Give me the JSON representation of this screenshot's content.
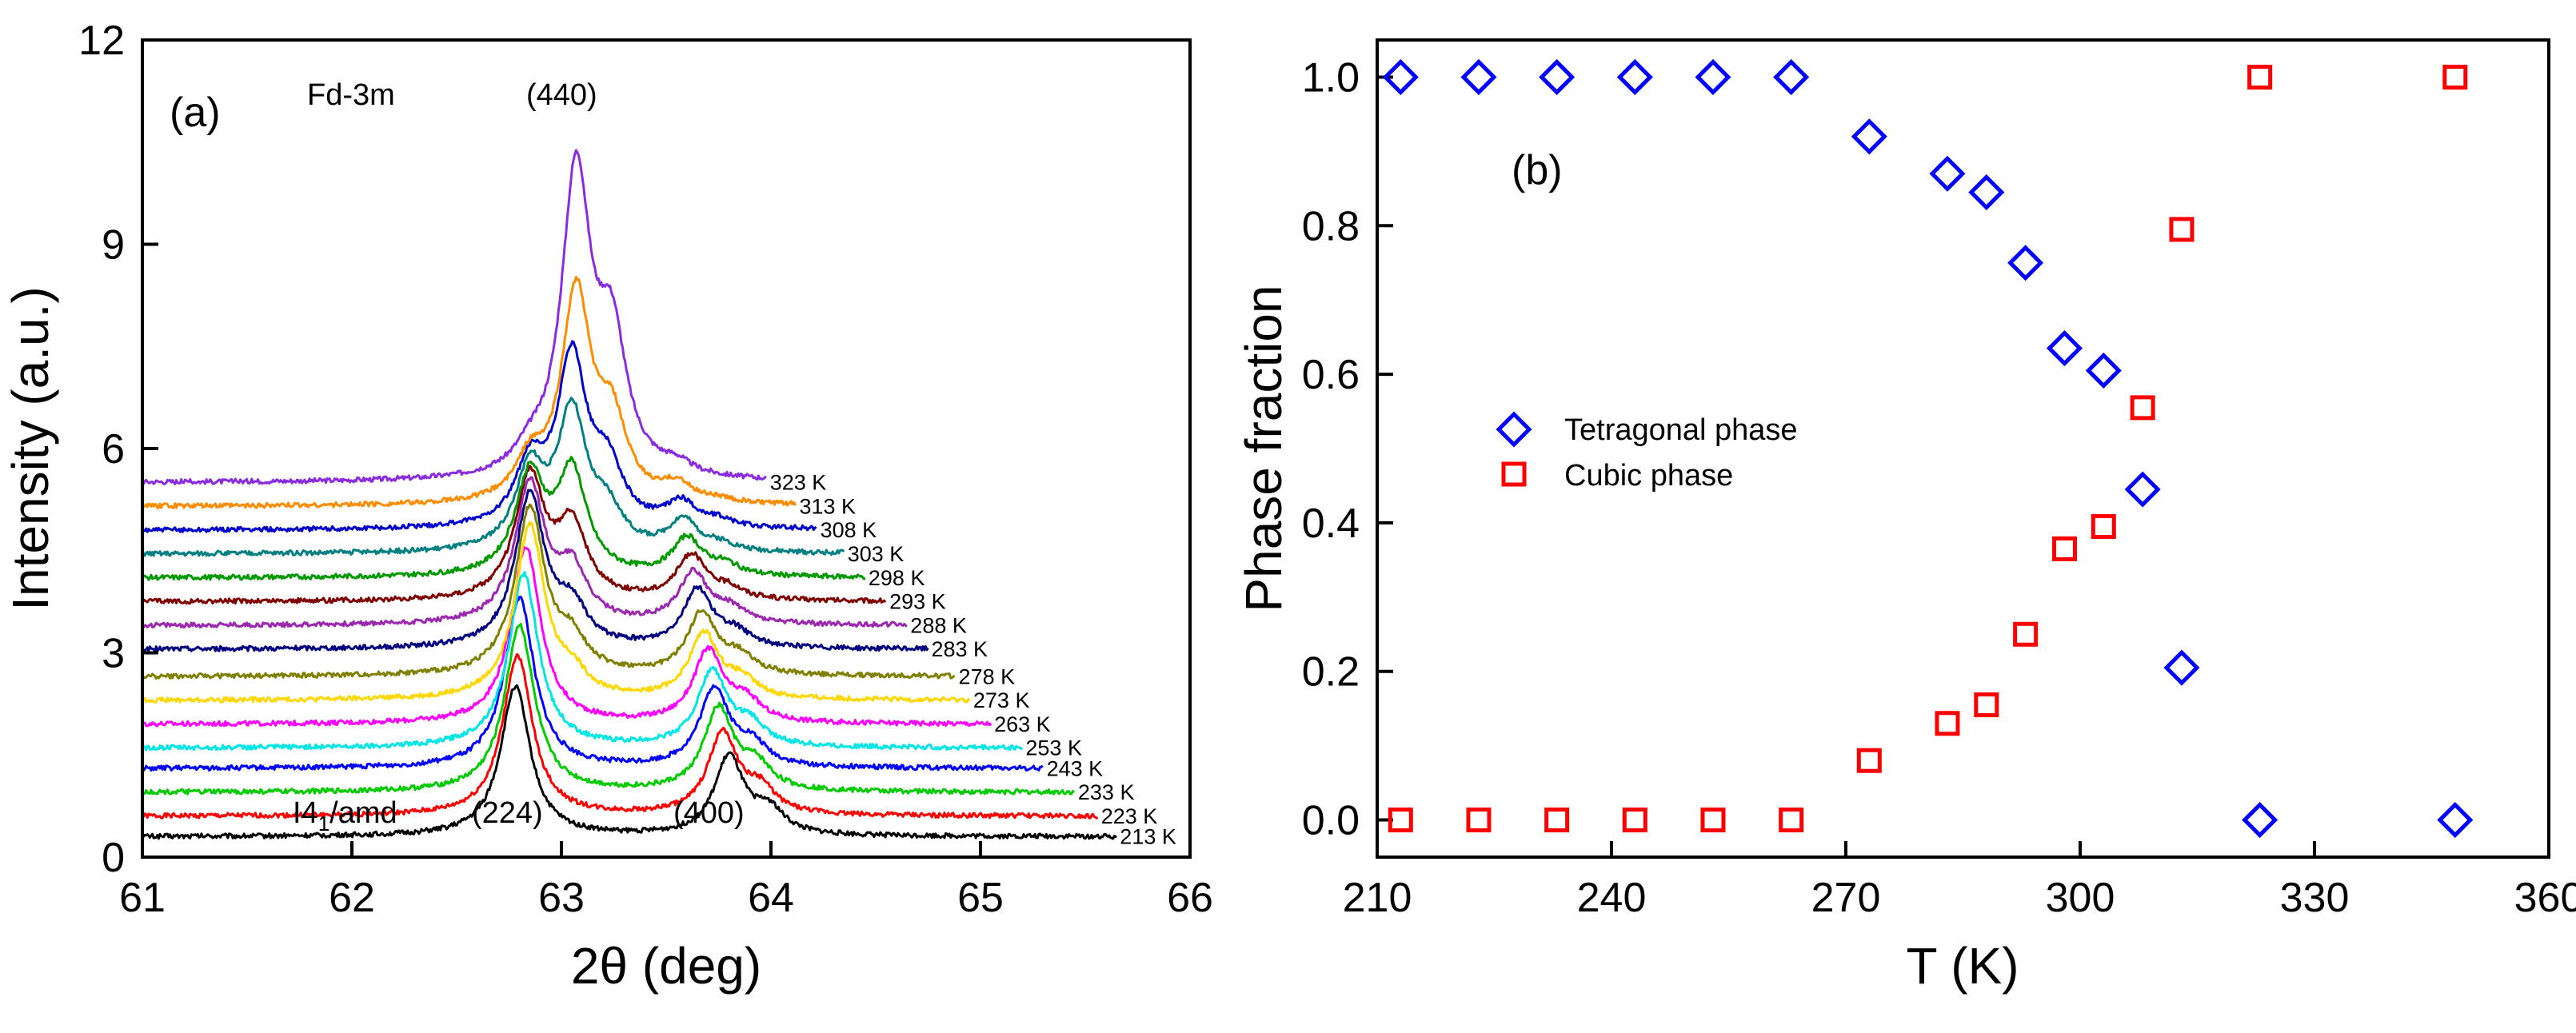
{
  "chart_data": [
    {
      "type": "line",
      "panel_label": "(a)",
      "xlabel": "2θ (deg)",
      "ylabel": "Intensity (a.u.)",
      "xlim": [
        61,
        66
      ],
      "ylim": [
        0,
        12
      ],
      "x_ticks": [
        61,
        62,
        63,
        64,
        65,
        66
      ],
      "y_ticks": [
        0,
        3,
        6,
        9,
        12
      ],
      "annotations": {
        "cubic_space_group": "Fd-3m",
        "cubic_peak": "(440)",
        "tetragonal_space_group_main": "I4",
        "tetragonal_space_group_sub": "1",
        "tetragonal_space_group_tail": "/amd",
        "tetragonal_peak_1": "(224)",
        "tetragonal_peak_2": "(400)"
      },
      "series": [
        {
          "name": "213 K",
          "temperature": 213,
          "color": "#000000",
          "baseline": 0.3,
          "x_end": 65.65,
          "peaks": [
            [
              62.78,
              2.2
            ],
            [
              63.8,
              1.15
            ],
            [
              63.99,
              0.35
            ]
          ]
        },
        {
          "name": "223 K",
          "temperature": 223,
          "color": "#ff0000",
          "baseline": 0.6,
          "x_end": 65.56,
          "peaks": [
            [
              62.79,
              2.35
            ],
            [
              63.77,
              1.2
            ],
            [
              63.95,
              0.35
            ]
          ]
        },
        {
          "name": "233 K",
          "temperature": 233,
          "color": "#00cc00",
          "baseline": 0.95,
          "x_end": 65.45,
          "peaks": [
            [
              62.8,
              2.45
            ],
            [
              63.75,
              1.2
            ],
            [
              63.93,
              0.35
            ]
          ]
        },
        {
          "name": "243 K",
          "temperature": 243,
          "color": "#0000ff",
          "baseline": 1.3,
          "x_end": 65.3,
          "peaks": [
            [
              62.8,
              2.5
            ],
            [
              63.73,
              1.15
            ],
            [
              63.91,
              0.3
            ]
          ]
        },
        {
          "name": "253 K",
          "temperature": 253,
          "color": "#00e5e5",
          "baseline": 1.6,
          "x_end": 65.2,
          "peaks": [
            [
              62.82,
              2.55
            ],
            [
              63.72,
              1.1
            ],
            [
              63.9,
              0.3
            ]
          ]
        },
        {
          "name": "263 K",
          "temperature": 263,
          "color": "#ff00ff",
          "baseline": 1.95,
          "x_end": 65.05,
          "peaks": [
            [
              62.83,
              2.6
            ],
            [
              63.7,
              1.05
            ],
            [
              63.88,
              0.3
            ]
          ]
        },
        {
          "name": "273 K",
          "temperature": 273,
          "color": "#ffd700",
          "baseline": 2.3,
          "x_end": 64.95,
          "peaks": [
            [
              62.85,
              2.55
            ],
            [
              63.68,
              0.95
            ],
            [
              63.86,
              0.25
            ],
            [
              63.05,
              0.3
            ]
          ]
        },
        {
          "name": "278 K",
          "temperature": 278,
          "color": "#808000",
          "baseline": 2.65,
          "x_end": 64.88,
          "peaks": [
            [
              62.85,
              2.45
            ],
            [
              63.67,
              0.9
            ],
            [
              63.85,
              0.25
            ],
            [
              63.05,
              0.45
            ]
          ]
        },
        {
          "name": "283 K",
          "temperature": 283,
          "color": "#000080",
          "baseline": 3.05,
          "x_end": 64.75,
          "peaks": [
            [
              62.85,
              2.25
            ],
            [
              63.65,
              0.85
            ],
            [
              63.83,
              0.2
            ],
            [
              63.05,
              0.55
            ]
          ]
        },
        {
          "name": "288 K",
          "temperature": 288,
          "color": "#9c27b0",
          "baseline": 3.4,
          "x_end": 64.65,
          "peaks": [
            [
              62.85,
              2.05
            ],
            [
              63.63,
              0.75
            ],
            [
              63.81,
              0.2
            ],
            [
              63.05,
              0.75
            ]
          ]
        },
        {
          "name": "293 K",
          "temperature": 293,
          "color": "#800000",
          "baseline": 3.75,
          "x_end": 64.55,
          "peaks": [
            [
              62.85,
              1.8
            ],
            [
              63.62,
              0.65
            ],
            [
              63.8,
              0.15
            ],
            [
              63.05,
              1.05
            ]
          ]
        },
        {
          "name": "298 K",
          "temperature": 298,
          "color": "#009900",
          "baseline": 4.1,
          "x_end": 64.45,
          "peaks": [
            [
              62.85,
              1.45
            ],
            [
              63.6,
              0.55
            ],
            [
              63.78,
              0.15
            ],
            [
              63.05,
              1.5
            ]
          ]
        },
        {
          "name": "303 K",
          "temperature": 303,
          "color": "#008080",
          "baseline": 4.45,
          "x_end": 64.35,
          "peaks": [
            [
              62.85,
              1.15
            ],
            [
              63.58,
              0.45
            ],
            [
              63.76,
              0.1
            ],
            [
              63.05,
              2.0
            ],
            [
              63.22,
              0.5
            ]
          ]
        },
        {
          "name": "308 K",
          "temperature": 308,
          "color": "#0000cd",
          "baseline": 4.8,
          "x_end": 64.22,
          "peaks": [
            [
              62.85,
              0.85
            ],
            [
              63.57,
              0.35
            ],
            [
              63.75,
              0.1
            ],
            [
              63.05,
              2.45
            ],
            [
              63.22,
              0.8
            ]
          ]
        },
        {
          "name": "313 K",
          "temperature": 313,
          "color": "#ff8c00",
          "baseline": 5.15,
          "x_end": 64.12,
          "peaks": [
            [
              62.85,
              0.55
            ],
            [
              63.55,
              0.25
            ],
            [
              63.74,
              0.05
            ],
            [
              63.07,
              3.05
            ],
            [
              63.24,
              1.1
            ]
          ]
        },
        {
          "name": "323 K",
          "temperature": 323,
          "color": "#8a2be2",
          "baseline": 5.5,
          "x_end": 63.98,
          "peaks": [
            [
              62.85,
              0.25
            ],
            [
              63.55,
              0.15
            ],
            [
              63.07,
              4.45
            ],
            [
              63.24,
              1.9
            ]
          ]
        }
      ]
    },
    {
      "type": "scatter",
      "panel_label": "(b)",
      "xlabel": "T (K)",
      "ylabel": "Phase fraction",
      "xlim": [
        210,
        360
      ],
      "ylim": [
        -0.05,
        1.05
      ],
      "x_ticks": [
        210,
        240,
        270,
        300,
        330,
        360
      ],
      "y_ticks": [
        0.0,
        0.2,
        0.4,
        0.6,
        0.8,
        1.0
      ],
      "x_tick_labels": [
        "210",
        "240",
        "270",
        "300",
        "330",
        "360"
      ],
      "y_tick_labels": [
        "0.0",
        "0.2",
        "0.4",
        "0.6",
        "0.8",
        "1.0"
      ],
      "legend_position": "center-left",
      "series": [
        {
          "name": "Tetragonal phase",
          "marker": "diamond",
          "color": "#0000ff",
          "x": [
            213,
            223,
            233,
            243,
            253,
            263,
            273,
            283,
            288,
            293,
            298,
            303,
            308,
            313,
            323,
            348
          ],
          "y": [
            1.0,
            1.0,
            1.0,
            1.0,
            1.0,
            1.0,
            0.92,
            0.87,
            0.845,
            0.75,
            0.635,
            0.605,
            0.445,
            0.205,
            0.0,
            0.0
          ]
        },
        {
          "name": "Cubic phase",
          "marker": "square",
          "color": "#ff0000",
          "x": [
            213,
            223,
            233,
            243,
            253,
            263,
            273,
            283,
            288,
            293,
            298,
            303,
            308,
            313,
            323,
            348
          ],
          "y": [
            0.0,
            0.0,
            0.0,
            0.0,
            0.0,
            0.0,
            0.08,
            0.13,
            0.155,
            0.25,
            0.365,
            0.395,
            0.555,
            0.795,
            1.0,
            1.0
          ]
        }
      ]
    }
  ]
}
